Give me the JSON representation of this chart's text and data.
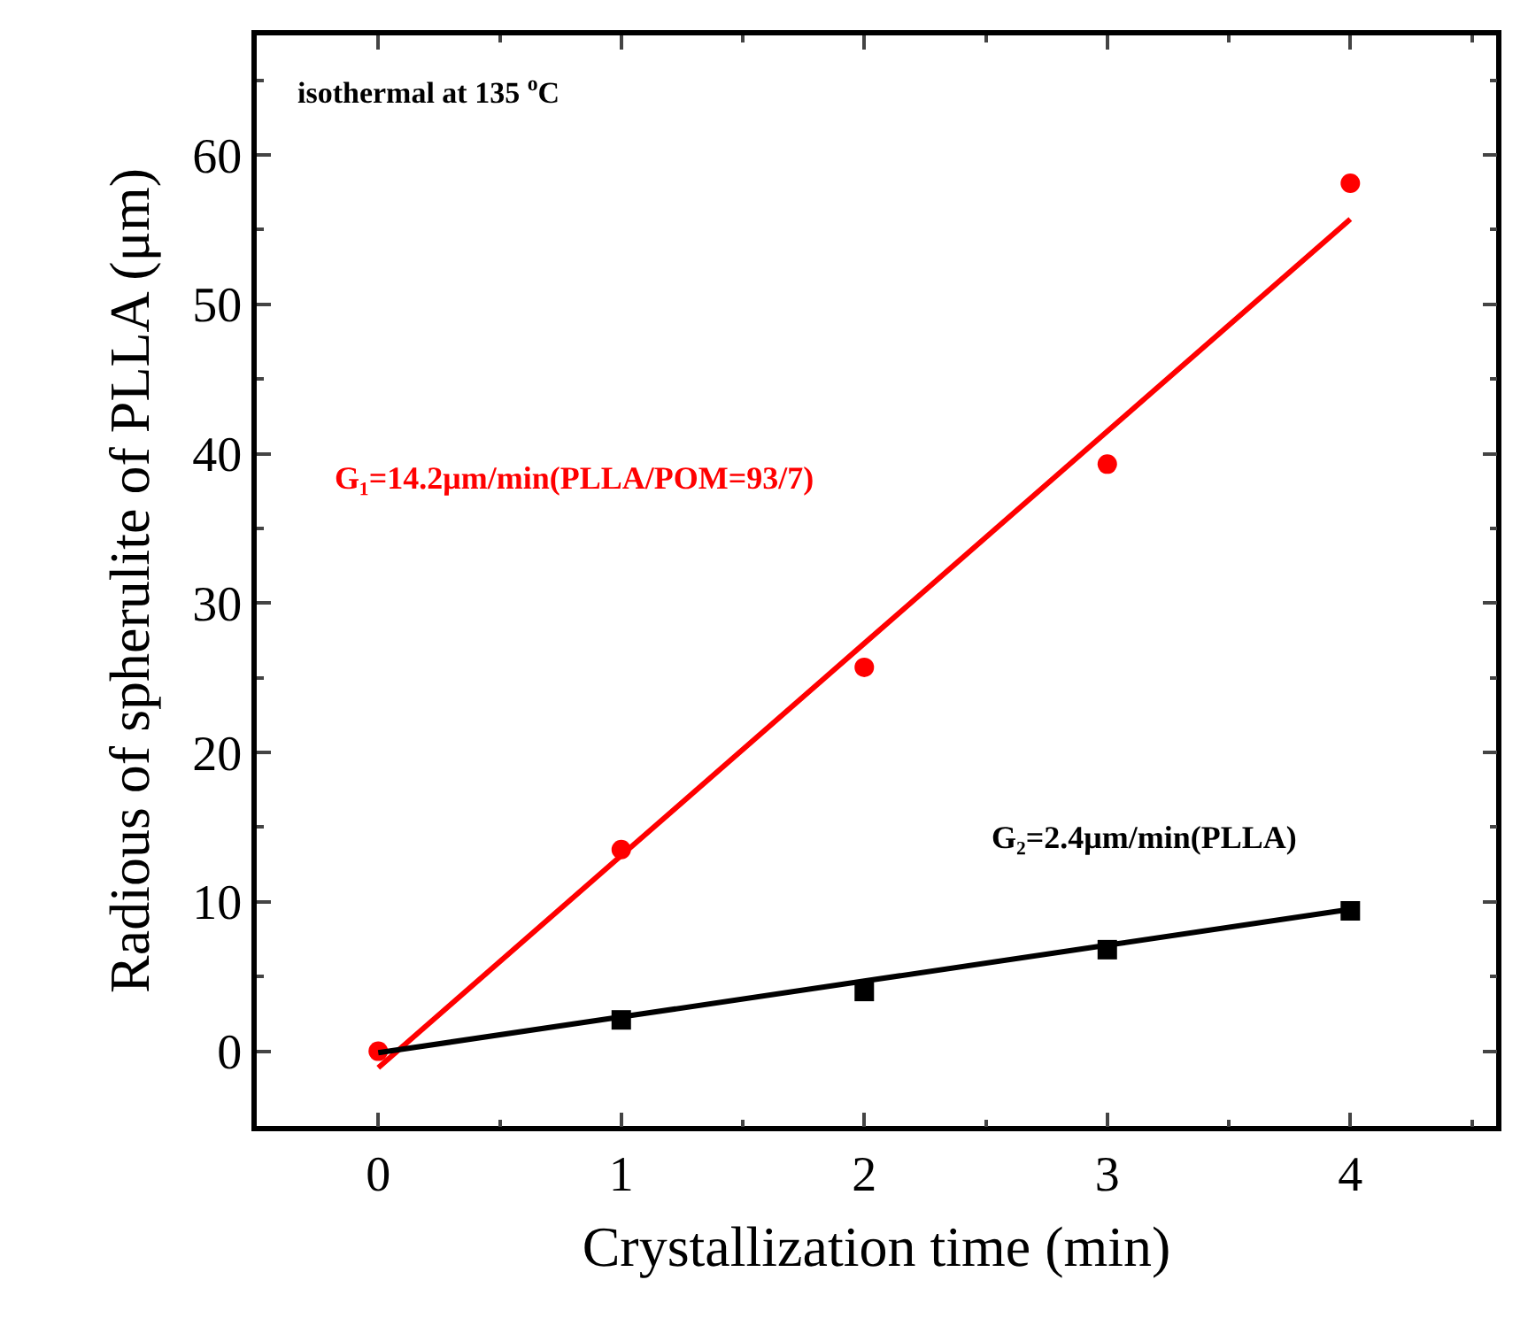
{
  "chart_data": {
    "type": "scatter",
    "xlabel": "Crystallization time (min)",
    "ylabel": "Radious of spherulite of PLLA (μm)",
    "x": [
      0,
      1,
      2,
      3,
      4
    ],
    "series": [
      {
        "marker": "square",
        "color": "#000000",
        "values": [
          null,
          2.1,
          4.0,
          6.8,
          9.4
        ]
      },
      {
        "marker": "circle",
        "color": "#ff0000",
        "values": [
          0,
          13.5,
          25.7,
          39.3,
          58.1
        ]
      },
      {
        "type": "line",
        "color": "#ff0000",
        "values": [
          -1.1,
          13.1,
          27.3,
          41.5,
          55.7
        ]
      },
      {
        "type": "line",
        "color": "#000000",
        "values": [
          -0.1,
          2.3,
          4.7,
          7.1,
          9.5
        ]
      }
    ],
    "annotations": [
      "isothermal at 135 $^{o}$C",
      "G₁=14.2μm/min(PLLA/POM=93/7)",
      "G₂=2.4μm/min(PLLA)"
    ],
    "xlim": [
      -0.5,
      4.6
    ],
    "ylim": [
      -5,
      68
    ],
    "xticks": [
      0,
      1,
      2,
      3,
      4
    ],
    "yticks": [
      0,
      10,
      20,
      30,
      40,
      50,
      60
    ]
  }
}
